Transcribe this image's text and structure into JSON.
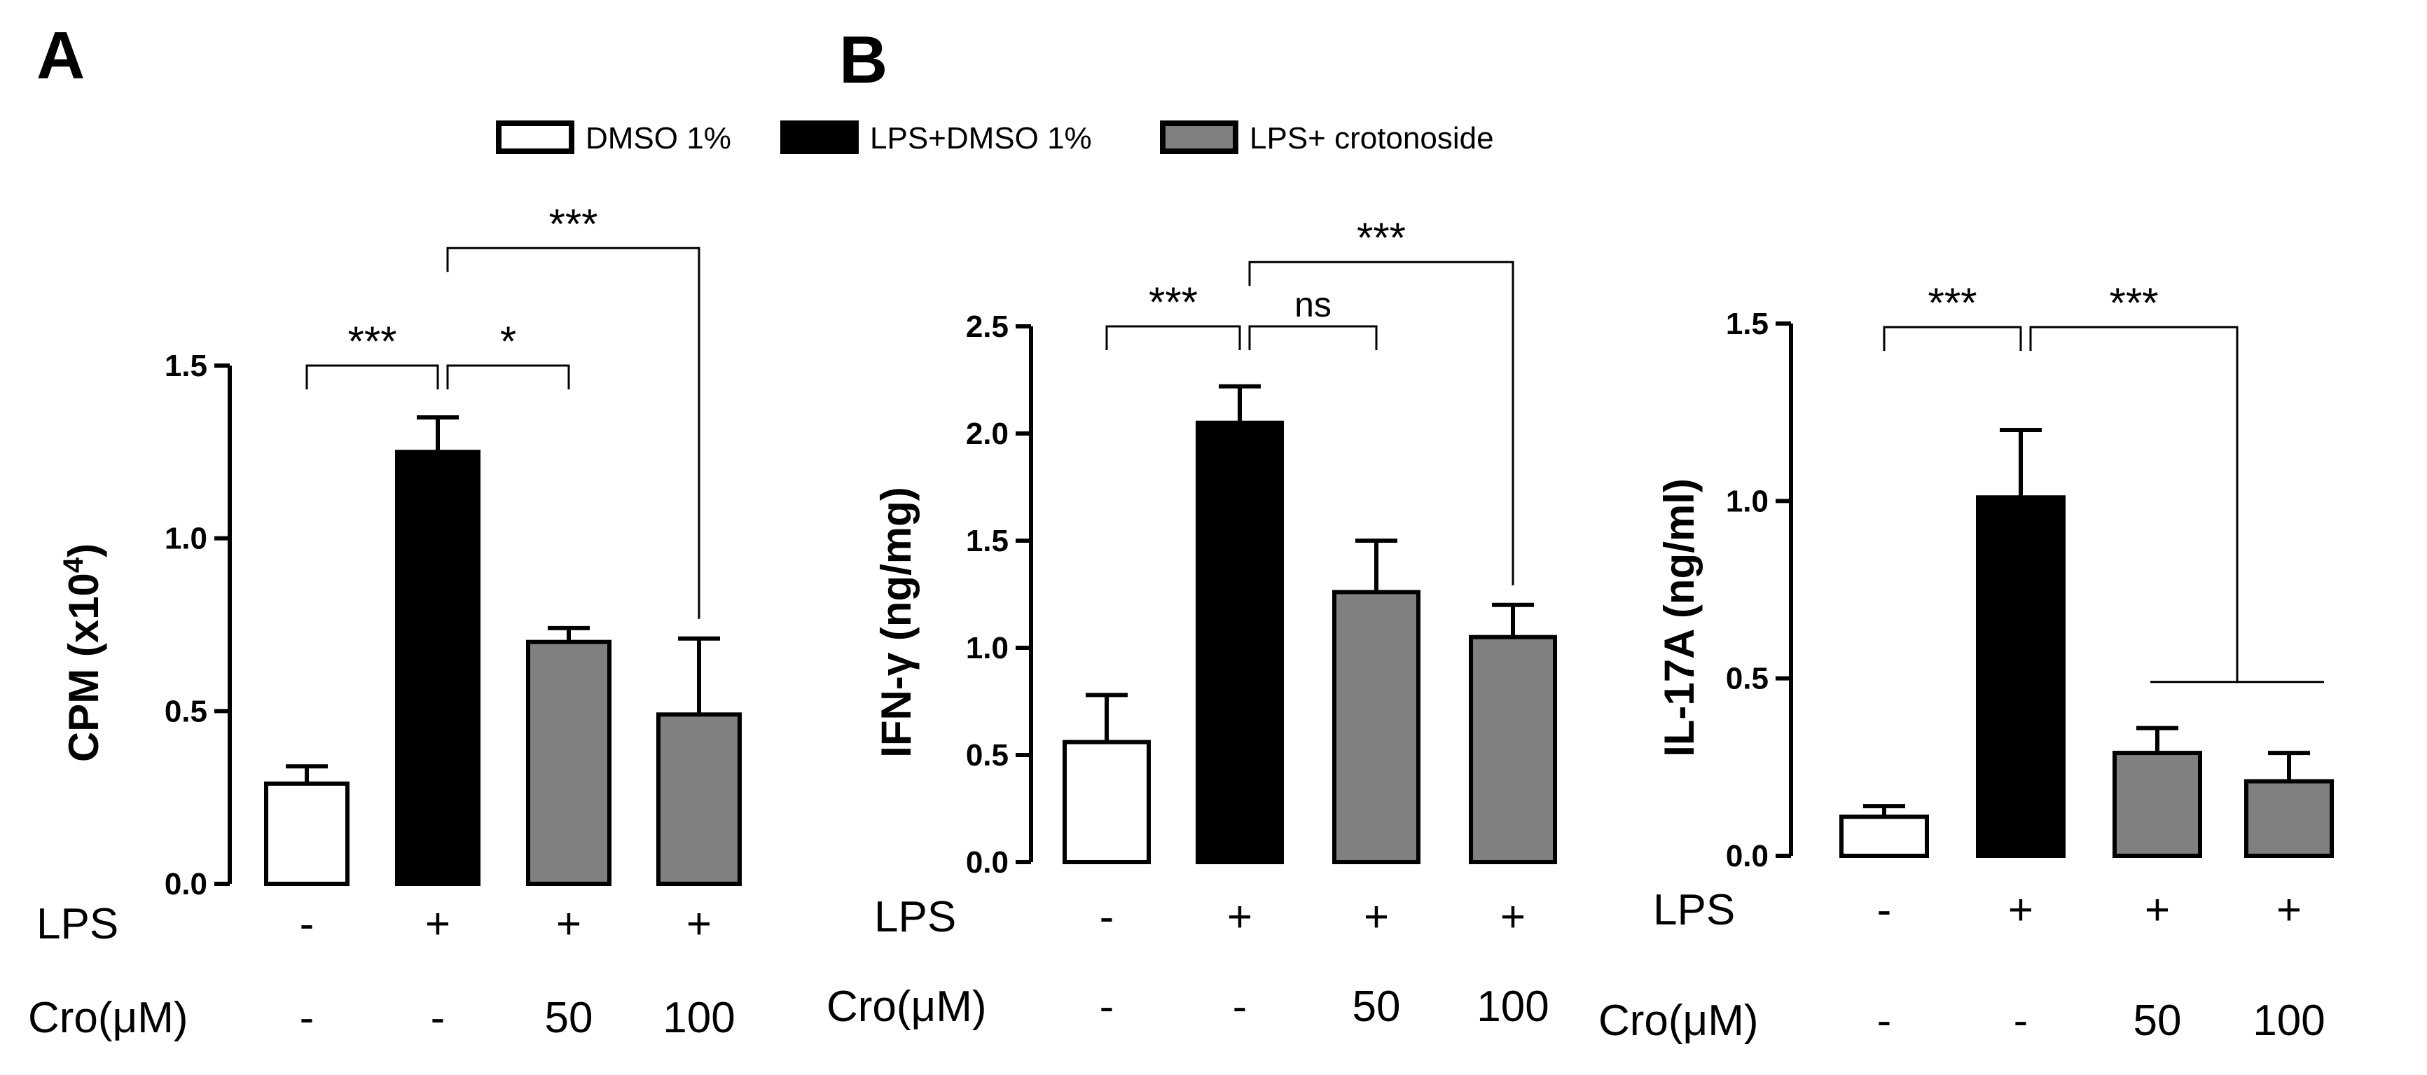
{
  "panels": {
    "a_label": "A",
    "b_label": "B"
  },
  "legend": {
    "items": [
      {
        "label": "DMSO 1%",
        "color": "#ffffff"
      },
      {
        "label": "LPS+DMSO 1%",
        "color": "#000000"
      },
      {
        "label": "LPS+ crotonoside",
        "color": "#808080"
      }
    ]
  },
  "conditions": {
    "lps_label": "LPS",
    "cro_label": "Cro(μM)",
    "lps": [
      "-",
      "+",
      "+",
      "+"
    ],
    "cro": [
      "-",
      "-",
      "50",
      "100"
    ]
  },
  "chart_data": [
    {
      "type": "bar",
      "panel": "A",
      "ylabel_main": "CPM (x10",
      "ylabel_sup": "4",
      "ylabel_end": ")",
      "ylim": [
        0,
        1.5
      ],
      "yticks": [
        "0.0",
        "0.5",
        "1.0",
        "1.5"
      ],
      "ytick_values": [
        0,
        0.5,
        1.0,
        1.5
      ],
      "categories": [
        "DMSO 1%",
        "LPS+DMSO 1%",
        "LPS+ crotonoside 50",
        "LPS+ crotonoside 100"
      ],
      "values": [
        0.29,
        1.25,
        0.7,
        0.49
      ],
      "errors": [
        0.05,
        0.1,
        0.04,
        0.22
      ],
      "colors": [
        "#ffffff",
        "#000000",
        "#808080",
        "#808080"
      ],
      "significance": [
        {
          "from": 0,
          "to": 1,
          "label": "***",
          "level": 1.5
        },
        {
          "from": 1,
          "to": 2,
          "label": "*",
          "level": 1.5
        },
        {
          "from": 1,
          "to": 3,
          "label": "***",
          "level": 1.84
        }
      ]
    },
    {
      "type": "bar",
      "panel": "B",
      "ylabel_main": "IFN-γ (ng/mg)",
      "ylim": [
        0,
        2.5
      ],
      "yticks": [
        "0.0",
        "0.5",
        "1.0",
        "1.5",
        "2.0",
        "2.5"
      ],
      "ytick_values": [
        0,
        0.5,
        1.0,
        1.5,
        2.0,
        2.5
      ],
      "categories": [
        "DMSO 1%",
        "LPS+DMSO 1%",
        "LPS+ crotonoside 50",
        "LPS+ crotonoside 100"
      ],
      "values": [
        0.56,
        2.05,
        1.26,
        1.05
      ],
      "errors": [
        0.22,
        0.17,
        0.24,
        0.15
      ],
      "colors": [
        "#ffffff",
        "#000000",
        "#808080",
        "#808080"
      ],
      "significance": [
        {
          "from": 0,
          "to": 1,
          "label": "***",
          "level": 2.5
        },
        {
          "from": 1,
          "to": 2,
          "label": "ns",
          "level": 2.5
        },
        {
          "from": 1,
          "to": 3,
          "label": "***",
          "level": 2.8
        }
      ]
    },
    {
      "type": "bar",
      "panel": "C",
      "ylabel_main": "IL-17A (ng/ml)",
      "ylim": [
        0,
        1.5
      ],
      "yticks": [
        "0.0",
        "0.5",
        "1.0",
        "1.5"
      ],
      "ytick_values": [
        0,
        0.5,
        1.0,
        1.5
      ],
      "categories": [
        "DMSO 1%",
        "LPS+DMSO 1%",
        "LPS+ crotonoside 50",
        "LPS+ crotonoside 100"
      ],
      "values": [
        0.11,
        1.01,
        0.29,
        0.21
      ],
      "errors": [
        0.03,
        0.19,
        0.07,
        0.08
      ],
      "colors": [
        "#ffffff",
        "#000000",
        "#808080",
        "#808080"
      ],
      "significance": [
        {
          "from": 0,
          "to": 1,
          "label": "***",
          "level": 1.49
        },
        {
          "from": 1,
          "to": 3,
          "label": "***",
          "level": 1.49,
          "group_end": [
            2,
            3
          ],
          "group_level": 0.49
        }
      ]
    }
  ]
}
